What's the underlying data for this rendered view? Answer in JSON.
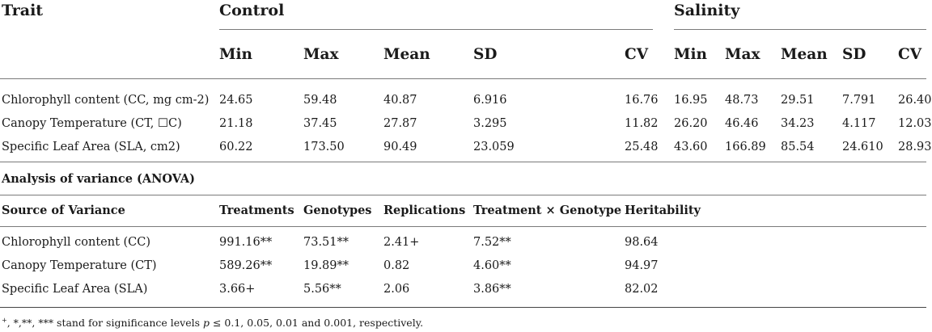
{
  "top_table": {
    "headers": {
      "trait": "Trait",
      "control": "Control",
      "salinity": "Salinity",
      "control_sub": [
        "Min",
        "Max",
        "Mean",
        "SD",
        "CV"
      ],
      "salinity_sub": [
        "Min",
        "Max",
        "Mean",
        "SD",
        "CV"
      ]
    },
    "rows": [
      {
        "trait": "Chlorophyll content (CC, mg cm-2)",
        "control": [
          "24.65",
          "59.48",
          "40.87",
          "6.916",
          "16.76"
        ],
        "salinity": [
          "16.95",
          "48.73",
          "29.51",
          "7.791",
          "26.40"
        ]
      },
      {
        "trait": "Canopy Temperature (CT, ☐C)",
        "control": [
          "21.18",
          "37.45",
          "27.87",
          "3.295",
          "11.82"
        ],
        "salinity": [
          "26.20",
          "46.46",
          "34.23",
          "4.117",
          "12.03"
        ]
      },
      {
        "trait": "Specific Leaf Area (SLA, cm2)",
        "control": [
          "60.22",
          "173.50",
          "90.49",
          "23.059",
          "25.48"
        ],
        "salinity": [
          "43.60",
          "166.89",
          "85.54",
          "24.610",
          "28.93"
        ]
      }
    ]
  },
  "anova": {
    "title": "Analysis of variance (ANOVA)",
    "headers": [
      "Source of Variance",
      "Treatments",
      "Genotypes",
      "Replications",
      "Treatment × Genotype",
      "Heritability"
    ],
    "rows": [
      [
        "Chlorophyll content (CC)",
        "991.16**",
        "73.51**",
        "2.41+",
        "7.52**",
        "98.64"
      ],
      [
        "Canopy Temperature (CT)",
        "589.26**",
        "19.89**",
        "0.82",
        "4.60**",
        "94.97"
      ],
      [
        "Specific Leaf Area (SLA)",
        "3.66+",
        "5.56**",
        "2.06",
        "3.86**",
        "82.02"
      ]
    ]
  },
  "footnote": {
    "symbols": "+",
    "text_before_p": ", *,**, *** stand for significance levels ",
    "p": "p",
    "text_after_p": " ≤ 0.1, 0.05, 0.01 and 0.001, respectively."
  }
}
